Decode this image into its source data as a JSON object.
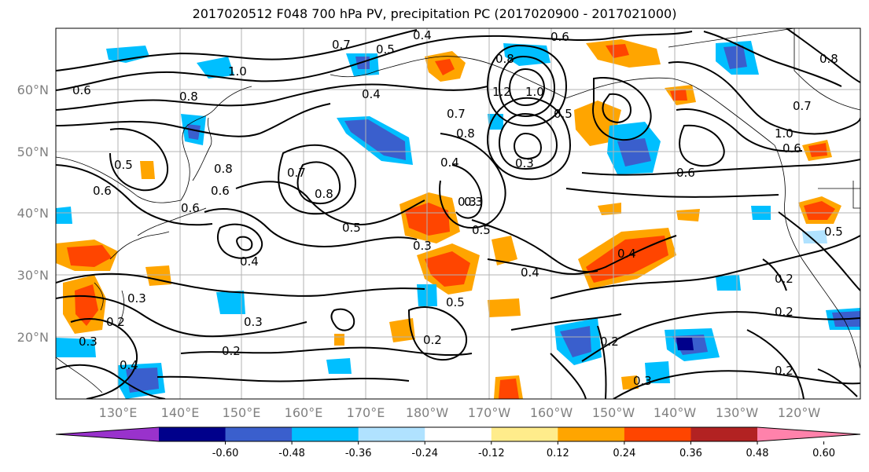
{
  "title": "2017020512 F048 700 hPa PV, precipitation PC (2017020900 - 2017021000)",
  "map": {
    "lat_labels": [
      "60°N",
      "50°N",
      "40°N",
      "30°N",
      "20°N"
    ],
    "lon_labels": [
      "130°E",
      "140°E",
      "150°E",
      "160°E",
      "170°E",
      "180°W",
      "170°W",
      "160°W",
      "150°W",
      "140°W",
      "130°W",
      "120°W"
    ],
    "contour_labels": [
      "0.6",
      "1.0",
      "0.8",
      "0.7",
      "0.5",
      "0.4",
      "0.6",
      "0.8",
      "1.2",
      "1.0",
      "0.7",
      "0.4",
      "0.3",
      "0.5",
      "0.8",
      "0.3",
      "0.7",
      "1.0",
      "0.6",
      "0.8",
      "0.6",
      "0.5",
      "0.6",
      "0.8",
      "0.7",
      "0.8",
      "0.4",
      "0.3",
      "0.5",
      "0.5",
      "0.4",
      "0.6",
      "0.4",
      "0.3",
      "0.3",
      "0.5",
      "0.2",
      "0.4",
      "0.3",
      "0.2",
      "0.2",
      "0.3",
      "0.2",
      "0.2",
      "0.3",
      "0.2",
      "0.5",
      "0.4",
      "0.2",
      "0.6"
    ]
  },
  "colorbar": {
    "colors": [
      "#9932cc",
      "#00008b",
      "#3a5fcd",
      "#00bfff",
      "#b0e2ff",
      "#ffffff",
      "#ffec8b",
      "#ffa500",
      "#ff4500",
      "#b22222",
      "#ff82ab"
    ],
    "tick_labels": [
      "-0.60",
      "-0.48",
      "-0.36",
      "-0.24",
      "-0.12",
      "0.12",
      "0.24",
      "0.36",
      "0.48",
      "0.60"
    ]
  }
}
